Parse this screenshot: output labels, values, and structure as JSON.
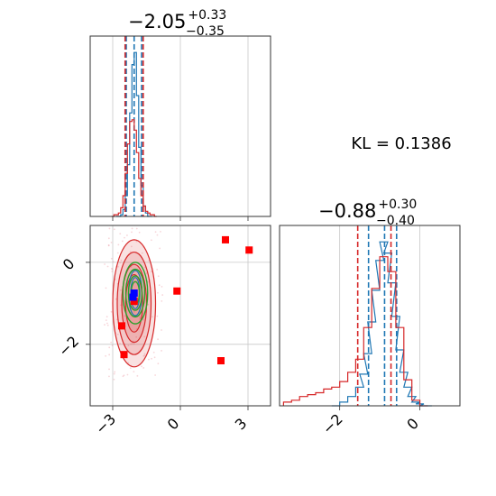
{
  "kl": {
    "label": "KL = 0.1386"
  },
  "titles": {
    "p0": {
      "main": "−2.05",
      "sup": "+0.33",
      "sub": "−0.35"
    },
    "p1": {
      "main": "−0.88",
      "sup": "+0.30",
      "sub": "−0.40"
    }
  },
  "chart_data": [
    {
      "type": "histogram",
      "panel": "marginal-p0",
      "x_range": [
        -4.0,
        4.0
      ],
      "xticks": [
        -3,
        0,
        3
      ],
      "xtick_labels": [
        "−3",
        "0",
        "3"
      ],
      "grid": true,
      "series": [
        {
          "color": "#1f77b4",
          "bins": [
            -2.85,
            -2.75,
            -2.65,
            -2.55,
            -2.45,
            -2.35,
            -2.25,
            -2.15,
            -2.05,
            -1.95,
            -1.85,
            -1.75,
            -1.65,
            -1.55,
            -1.45,
            -1.35
          ],
          "counts": [
            0,
            0,
            0.01,
            0.04,
            0.12,
            0.3,
            0.6,
            0.88,
            0.95,
            0.7,
            0.4,
            0.18,
            0.06,
            0.02,
            0.0,
            0
          ],
          "median": -2.05,
          "quantiles": [
            -2.4,
            -1.72
          ]
        },
        {
          "color": "#d62728",
          "bins": [
            -3.05,
            -2.95,
            -2.85,
            -2.75,
            -2.65,
            -2.55,
            -2.45,
            -2.35,
            -2.25,
            -2.15,
            -2.05,
            -1.95,
            -1.85,
            -1.75,
            -1.65,
            -1.55,
            -1.45,
            -1.35,
            -1.25,
            -1.15
          ],
          "counts": [
            0,
            0.01,
            0.01,
            0.02,
            0.05,
            0.12,
            0.25,
            0.42,
            0.55,
            0.56,
            0.5,
            0.37,
            0.22,
            0.12,
            0.06,
            0.03,
            0.02,
            0.01,
            0.01,
            0
          ],
          "quantiles": [
            -2.45,
            -1.65
          ]
        }
      ]
    },
    {
      "type": "scatter",
      "panel": "joint-p0-p1",
      "x_range": [
        -4.0,
        4.0
      ],
      "y_range": [
        -3.5,
        0.9
      ],
      "xticks": [
        -3,
        0,
        3
      ],
      "xtick_labels": [
        "−3",
        "0",
        "3"
      ],
      "yticks": [
        0,
        -2
      ],
      "ytick_labels": [
        "0",
        "−2"
      ],
      "grid": true,
      "red_points": [
        [
          -2.05,
          -0.95
        ],
        [
          -2.6,
          -1.55
        ],
        [
          -0.15,
          -0.7
        ],
        [
          2.0,
          0.55
        ],
        [
          3.05,
          0.3
        ],
        [
          -2.5,
          -2.25
        ],
        [
          1.8,
          -2.4
        ]
      ],
      "blue_points": [
        [
          -2.05,
          -0.75
        ],
        [
          -2.1,
          -0.85
        ]
      ],
      "contours": [
        {
          "color": "#d62728",
          "center": [
            -2.05,
            -1.0
          ],
          "radii": [
            [
              0.95,
              1.55
            ],
            [
              0.75,
              1.25
            ],
            [
              0.55,
              0.95
            ],
            [
              0.38,
              0.7
            ]
          ]
        },
        {
          "color": "#1f77b4",
          "center": [
            -2.0,
            -0.75
          ],
          "radii": [
            [
              0.3,
              0.55
            ],
            [
              0.2,
              0.38
            ]
          ]
        },
        {
          "color": "#2ca02c",
          "center": [
            -2.0,
            -0.75
          ],
          "radii": [
            [
              0.55,
              0.75
            ],
            [
              0.42,
              0.58
            ],
            [
              0.3,
              0.42
            ],
            [
              0.18,
              0.28
            ]
          ]
        }
      ]
    },
    {
      "type": "histogram",
      "panel": "marginal-p1",
      "x_range": [
        -3.5,
        1.0
      ],
      "xticks": [
        -2,
        0
      ],
      "xtick_labels": [
        "−2",
        "0"
      ],
      "grid": true,
      "series": [
        {
          "color": "#1f77b4",
          "bins": [
            -2.2,
            -2.0,
            -1.8,
            -1.6,
            -1.5,
            -1.4,
            -1.3,
            -1.2,
            -1.1,
            -1.0,
            -0.9,
            -0.8,
            -0.7,
            -0.6,
            -0.5,
            -0.4,
            -0.3,
            -0.2,
            -0.1,
            0.0,
            0.1
          ],
          "counts": [
            0,
            0.02,
            0.05,
            0.1,
            0.17,
            0.28,
            0.45,
            0.62,
            0.78,
            0.88,
            0.82,
            0.66,
            0.48,
            0.3,
            0.18,
            0.1,
            0.05,
            0.02,
            0.01,
            0.0,
            0
          ],
          "median": -0.88,
          "quantiles": [
            -1.28,
            -0.58
          ]
        },
        {
          "color": "#d62728",
          "bins": [
            -3.4,
            -3.2,
            -3.0,
            -2.8,
            -2.6,
            -2.4,
            -2.2,
            -2.0,
            -1.8,
            -1.6,
            -1.4,
            -1.2,
            -1.0,
            -0.8,
            -0.6,
            -0.4,
            -0.2,
            0.0
          ],
          "counts": [
            0.02,
            0.03,
            0.05,
            0.06,
            0.07,
            0.09,
            0.1,
            0.13,
            0.18,
            0.25,
            0.42,
            0.63,
            0.8,
            0.72,
            0.42,
            0.14,
            0.03,
            0
          ],
          "quantiles": [
            -1.55,
            -0.72
          ]
        }
      ]
    }
  ]
}
